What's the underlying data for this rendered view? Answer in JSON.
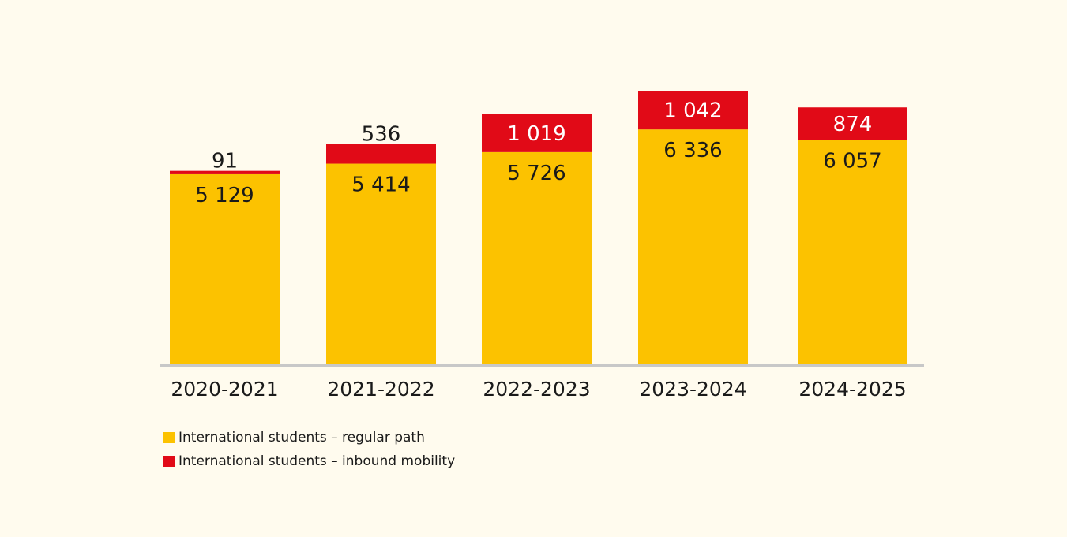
{
  "chart_data": {
    "type": "bar",
    "stacked": true,
    "title": "",
    "xlabel": "",
    "ylabel": "",
    "grid": false,
    "legend_position": "bottom-left",
    "categories": [
      "2020-2021",
      "2021-2022",
      "2022-2023",
      "2023-2024",
      "2024-2025"
    ],
    "series": [
      {
        "name": "International students – regular path",
        "color": "#fcc200",
        "values": [
          5129,
          5414,
          5726,
          6336,
          6057
        ],
        "labels": [
          "5 129",
          "5 414",
          "5 726",
          "6 336",
          "6 057"
        ]
      },
      {
        "name": "International students – inbound mobility",
        "color": "#e10a17",
        "values": [
          91,
          536,
          1019,
          1042,
          874
        ],
        "labels": [
          "91",
          "536",
          "1 019",
          "1 042",
          "874"
        ]
      }
    ],
    "ylim": [
      0,
      8000
    ]
  },
  "colors": {
    "background": "#fffbee",
    "axis": "#c8c8c8",
    "text_dark": "#1a1a1a",
    "text_light": "#ffffff"
  }
}
